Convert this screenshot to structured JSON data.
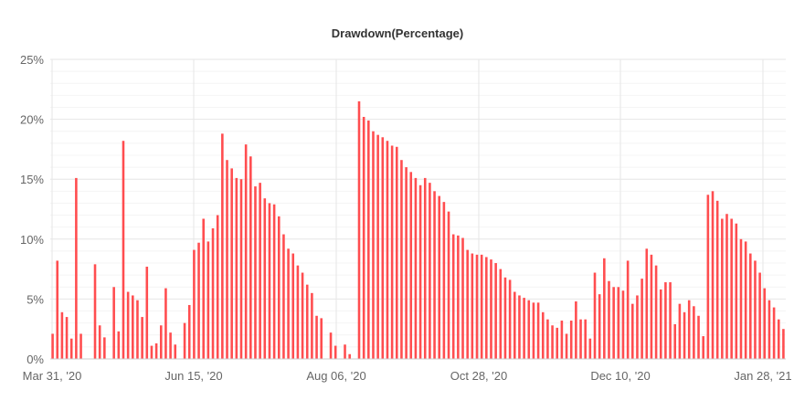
{
  "chart_data": {
    "type": "bar",
    "title": "Drawdown(Percentage)",
    "xlabel": "",
    "ylabel": "",
    "ylim": [
      0,
      25
    ],
    "y_ticks": [
      "0%",
      "5%",
      "10%",
      "15%",
      "20%",
      "25%"
    ],
    "x_ticks": [
      "Mar 31, '20",
      "Jun 15, '20",
      "Aug 06, '20",
      "Oct 28, '20",
      "Dec 10, '20",
      "Jan 28, '21"
    ],
    "grid": true,
    "legend": "none",
    "bar_color": "#ff4d4f",
    "series": [
      {
        "values": [
          2.1,
          8.2,
          3.9,
          3.5,
          1.7,
          15.1,
          2.1,
          0,
          0,
          7.9,
          2.8,
          1.8,
          0,
          6.0,
          2.3,
          18.2,
          5.6,
          5.3,
          4.9,
          3.5,
          7.7,
          1.1,
          1.3,
          2.8,
          5.9,
          2.2,
          1.2,
          0,
          3.0,
          4.5,
          9.1,
          9.7,
          11.7,
          9.8,
          10.9,
          12.0,
          18.8,
          16.6,
          15.9,
          15.1,
          15.0,
          17.9,
          16.9,
          14.4,
          14.7,
          13.4,
          13.0,
          12.9,
          11.9,
          10.4,
          9.2,
          8.8,
          7.8,
          7.2,
          6.2,
          5.5,
          3.6,
          3.4,
          0,
          2.2,
          1.1,
          0,
          1.2,
          0.4,
          0,
          21.5,
          20.2,
          19.9,
          19.0,
          18.7,
          18.5,
          18.2,
          17.8,
          17.7,
          16.6,
          16.0,
          15.6,
          15.1,
          14.5,
          15.1,
          14.7,
          14.0,
          13.6,
          13.1,
          12.3,
          10.4,
          10.3,
          10.1,
          9.1,
          8.8,
          8.7,
          8.7,
          8.5,
          8.3,
          8.0,
          7.5,
          6.8,
          6.6,
          5.6,
          5.3,
          5.1,
          4.9,
          4.7,
          4.7,
          3.9,
          3.3,
          2.8,
          2.6,
          3.2,
          2.1,
          3.2,
          4.8,
          3.3,
          3.3,
          1.7,
          7.2,
          5.4,
          8.4,
          6.5,
          6.0,
          6.0,
          5.7,
          8.2,
          4.6,
          5.3,
          6.7,
          9.2,
          8.7,
          7.8,
          5.8,
          6.4,
          6.4,
          2.9,
          4.6,
          3.9,
          4.9,
          4.4,
          3.6,
          1.9,
          13.7,
          14.0,
          13.2,
          11.7,
          12.1,
          11.7,
          11.3,
          10.0,
          9.8,
          8.8,
          8.2,
          7.2,
          5.9,
          4.9,
          4.3,
          3.3,
          2.5
        ]
      }
    ]
  }
}
